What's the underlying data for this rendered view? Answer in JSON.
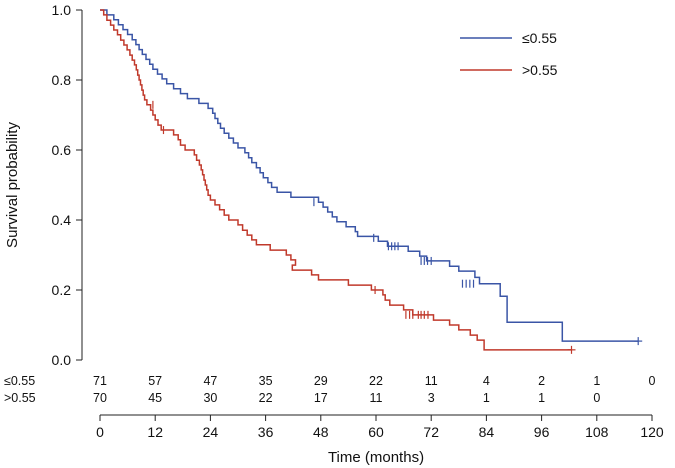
{
  "chart_data": {
    "type": "line",
    "subtype": "kaplan-meier",
    "title": "",
    "xlabel": "Time (months)",
    "ylabel": "Survival probability",
    "xlim": [
      0,
      120
    ],
    "ylim": [
      0,
      1.0
    ],
    "xticks": [
      "0",
      "12",
      "24",
      "36",
      "48",
      "60",
      "72",
      "84",
      "96",
      "108",
      "120"
    ],
    "yticks": [
      "0.0",
      "0.2",
      "0.4",
      "0.6",
      "0.8",
      "1.0"
    ],
    "legend_position": "top-right",
    "series": [
      {
        "name": "≤0.55",
        "color": "#3a55a6",
        "steps": [
          [
            0,
            1.0
          ],
          [
            1.5,
            0.986
          ],
          [
            3,
            0.972
          ],
          [
            4,
            0.958
          ],
          [
            5,
            0.944
          ],
          [
            6,
            0.93
          ],
          [
            7,
            0.915
          ],
          [
            7.8,
            0.901
          ],
          [
            8.5,
            0.887
          ],
          [
            9.2,
            0.873
          ],
          [
            10,
            0.859
          ],
          [
            10.8,
            0.845
          ],
          [
            11.5,
            0.831
          ],
          [
            12.5,
            0.817
          ],
          [
            13.5,
            0.803
          ],
          [
            14.5,
            0.789
          ],
          [
            16,
            0.775
          ],
          [
            17.5,
            0.761
          ],
          [
            19,
            0.747
          ],
          [
            21.5,
            0.733
          ],
          [
            23.5,
            0.719
          ],
          [
            24.5,
            0.705
          ],
          [
            25,
            0.69
          ],
          [
            25.6,
            0.676
          ],
          [
            26.2,
            0.662
          ],
          [
            27,
            0.648
          ],
          [
            28,
            0.634
          ],
          [
            29,
            0.62
          ],
          [
            30,
            0.606
          ],
          [
            31.5,
            0.592
          ],
          [
            32.3,
            0.578
          ],
          [
            33,
            0.564
          ],
          [
            34,
            0.549
          ],
          [
            34.8,
            0.535
          ],
          [
            35.5,
            0.521
          ],
          [
            36.5,
            0.507
          ],
          [
            37.3,
            0.493
          ],
          [
            38.5,
            0.479
          ],
          [
            41.5,
            0.465
          ],
          [
            47.5,
            0.451
          ],
          [
            48.5,
            0.437
          ],
          [
            49.5,
            0.423
          ],
          [
            50.5,
            0.409
          ],
          [
            51.5,
            0.395
          ],
          [
            53.5,
            0.381
          ],
          [
            55.5,
            0.367
          ],
          [
            56,
            0.353
          ],
          [
            60.5,
            0.339
          ],
          [
            62.5,
            0.325
          ],
          [
            67,
            0.311
          ],
          [
            69.5,
            0.297
          ],
          [
            71,
            0.283
          ],
          [
            76,
            0.268
          ],
          [
            78,
            0.254
          ],
          [
            81.5,
            0.236
          ],
          [
            82.5,
            0.218
          ],
          [
            87,
            0.182
          ],
          [
            88.5,
            0.108
          ],
          [
            100.5,
            0.054
          ]
        ],
        "end_x": 117,
        "censors": [
          [
            46.5,
            0.451
          ],
          [
            59.5,
            0.349
          ],
          [
            62.7,
            0.325
          ],
          [
            63.4,
            0.325
          ],
          [
            64.1,
            0.325
          ],
          [
            64.8,
            0.325
          ],
          [
            69.8,
            0.283
          ],
          [
            70.5,
            0.283
          ],
          [
            71.2,
            0.283
          ],
          [
            72,
            0.283
          ],
          [
            78.8,
            0.218
          ],
          [
            79.6,
            0.218
          ],
          [
            80.4,
            0.218
          ],
          [
            81.2,
            0.218
          ],
          [
            117,
            0.054
          ]
        ]
      },
      {
        "name": ">0.55",
        "color": "#c0392b",
        "steps": [
          [
            0,
            1.0
          ],
          [
            0.8,
            0.986
          ],
          [
            1.5,
            0.971
          ],
          [
            2.3,
            0.957
          ],
          [
            3,
            0.943
          ],
          [
            3.8,
            0.929
          ],
          [
            4.5,
            0.914
          ],
          [
            5.2,
            0.9
          ],
          [
            5.9,
            0.886
          ],
          [
            6.5,
            0.871
          ],
          [
            7,
            0.857
          ],
          [
            7.5,
            0.843
          ],
          [
            7.9,
            0.829
          ],
          [
            8.2,
            0.814
          ],
          [
            8.5,
            0.8
          ],
          [
            8.8,
            0.786
          ],
          [
            9.1,
            0.771
          ],
          [
            9.4,
            0.757
          ],
          [
            9.7,
            0.743
          ],
          [
            10.2,
            0.729
          ],
          [
            11,
            0.714
          ],
          [
            11.5,
            0.7
          ],
          [
            12,
            0.686
          ],
          [
            12.6,
            0.671
          ],
          [
            13.3,
            0.657
          ],
          [
            16,
            0.643
          ],
          [
            17,
            0.629
          ],
          [
            17.5,
            0.614
          ],
          [
            18.5,
            0.6
          ],
          [
            20.5,
            0.586
          ],
          [
            21,
            0.571
          ],
          [
            21.6,
            0.557
          ],
          [
            22,
            0.543
          ],
          [
            22.3,
            0.529
          ],
          [
            22.6,
            0.514
          ],
          [
            22.9,
            0.5
          ],
          [
            23.2,
            0.486
          ],
          [
            23.5,
            0.471
          ],
          [
            24,
            0.457
          ],
          [
            25,
            0.443
          ],
          [
            26,
            0.429
          ],
          [
            27,
            0.414
          ],
          [
            28,
            0.4
          ],
          [
            30,
            0.386
          ],
          [
            31,
            0.371
          ],
          [
            32,
            0.357
          ],
          [
            33,
            0.343
          ],
          [
            34,
            0.329
          ],
          [
            37,
            0.314
          ],
          [
            40.5,
            0.3
          ],
          [
            41.5,
            0.286
          ],
          [
            42.5,
            0.271
          ],
          [
            41.8,
            0.257
          ],
          [
            46,
            0.243
          ],
          [
            47.5,
            0.229
          ],
          [
            54,
            0.214
          ],
          [
            59,
            0.2
          ],
          [
            61.5,
            0.186
          ],
          [
            62,
            0.171
          ],
          [
            63,
            0.157
          ],
          [
            66,
            0.143
          ],
          [
            68,
            0.129
          ],
          [
            72.5,
            0.114
          ],
          [
            76,
            0.1
          ],
          [
            78,
            0.086
          ],
          [
            80.5,
            0.071
          ],
          [
            82,
            0.057
          ],
          [
            83.5,
            0.029
          ]
        ],
        "end_x": 102.5,
        "censors": [
          [
            11.5,
            0.729
          ],
          [
            13.8,
            0.657
          ],
          [
            59.8,
            0.2
          ],
          [
            66.5,
            0.129
          ],
          [
            67.3,
            0.129
          ],
          [
            68,
            0.129
          ],
          [
            69.2,
            0.129
          ],
          [
            69.8,
            0.129
          ],
          [
            70.5,
            0.129
          ],
          [
            71.3,
            0.129
          ],
          [
            102.5,
            0.029
          ]
        ]
      }
    ],
    "risk_table": {
      "times": [
        0,
        12,
        24,
        36,
        48,
        60,
        72,
        84,
        96,
        108,
        120
      ],
      "rows": [
        {
          "label": "≤0.55",
          "counts": [
            "71",
            "57",
            "47",
            "35",
            "29",
            "22",
            "11",
            "4",
            "2",
            "1",
            "0"
          ]
        },
        {
          "label": ">0.55",
          "counts": [
            "70",
            "45",
            "30",
            "22",
            "17",
            "11",
            "3",
            "1",
            "1",
            "0",
            ""
          ]
        }
      ]
    }
  }
}
